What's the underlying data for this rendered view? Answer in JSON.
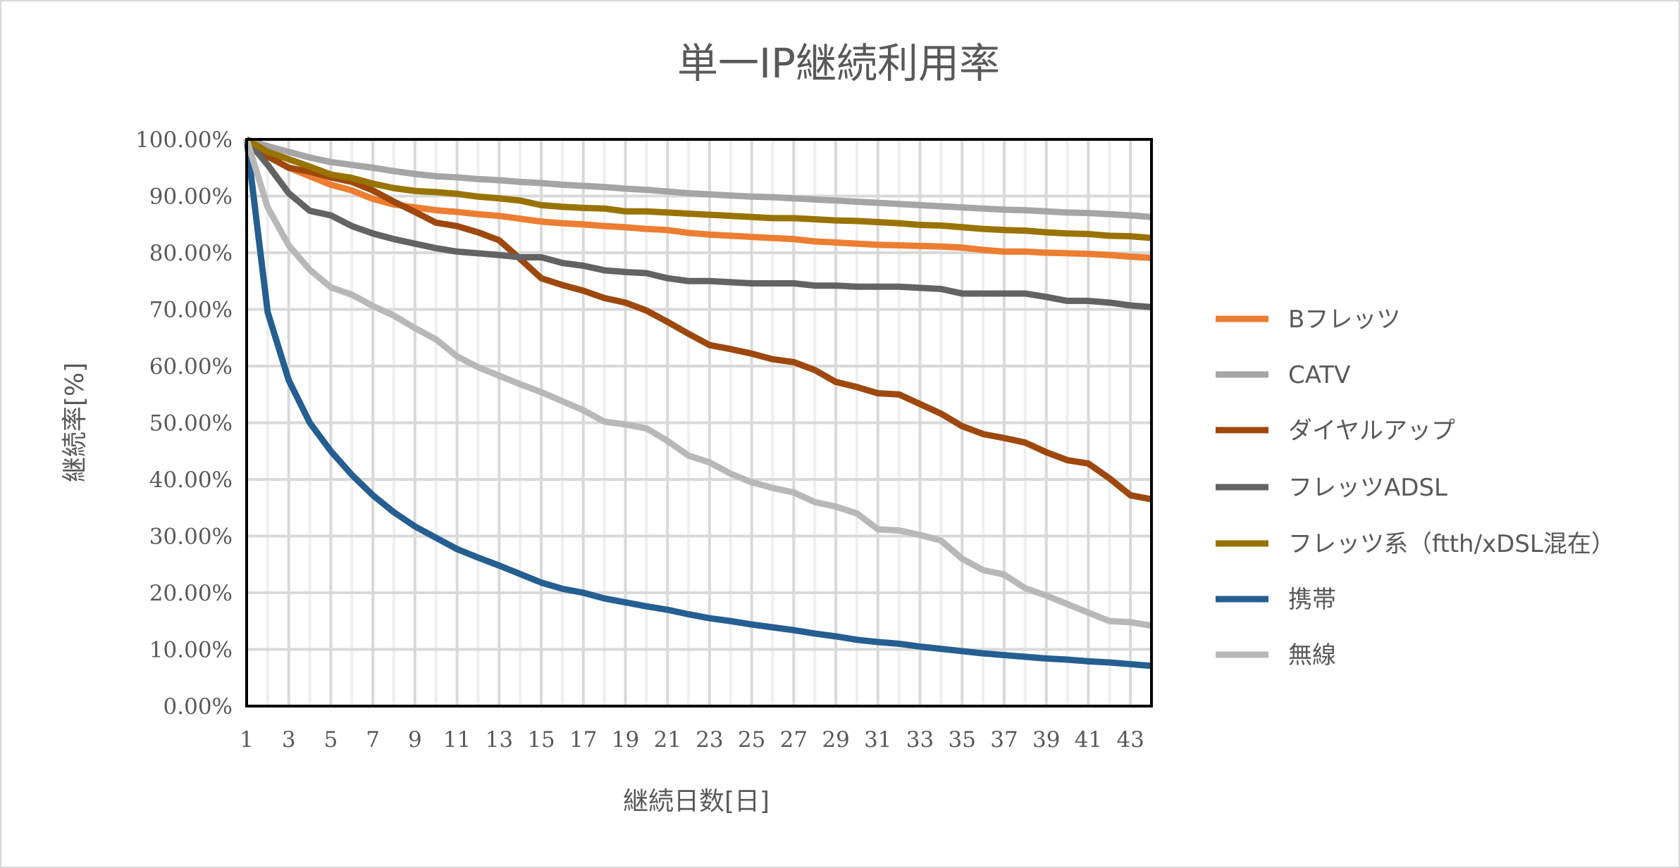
{
  "chart_data": {
    "type": "line",
    "title": "単一IP継続利用率",
    "xlabel": "継続日数[日]",
    "ylabel": "継続率[%]",
    "ylim": [
      0,
      100
    ],
    "xlim": [
      1,
      44
    ],
    "grid": true,
    "legend_position": "right",
    "y_ticks": [
      "0.00%",
      "10.00%",
      "20.00%",
      "30.00%",
      "40.00%",
      "50.00%",
      "60.00%",
      "70.00%",
      "80.00%",
      "90.00%",
      "100.00%"
    ],
    "x_ticks": [
      "1",
      "3",
      "5",
      "7",
      "9",
      "11",
      "13",
      "15",
      "17",
      "19",
      "21",
      "23",
      "25",
      "27",
      "29",
      "31",
      "33",
      "35",
      "37",
      "39",
      "41",
      "43"
    ],
    "x": [
      1,
      2,
      3,
      4,
      5,
      6,
      7,
      8,
      9,
      10,
      11,
      12,
      13,
      14,
      15,
      16,
      17,
      18,
      19,
      20,
      21,
      22,
      23,
      24,
      25,
      26,
      27,
      28,
      29,
      30,
      31,
      32,
      33,
      34,
      35,
      36,
      37,
      38,
      39,
      40,
      41,
      42,
      43,
      44
    ],
    "series": [
      {
        "name": "Bフレッツ",
        "color": "#ED7D31",
        "values": [
          100,
          97,
          95,
          93.5,
          92,
          91,
          89.5,
          88.5,
          88,
          87.5,
          87.2,
          86.8,
          86.5,
          86,
          85.5,
          85.2,
          85,
          84.7,
          84.5,
          84.2,
          84,
          83.5,
          83.2,
          83,
          82.8,
          82.6,
          82.4,
          82,
          81.8,
          81.6,
          81.4,
          81.3,
          81.2,
          81.1,
          80.9,
          80.5,
          80.2,
          80.2,
          80,
          79.9,
          79.8,
          79.6,
          79.3,
          79.1
        ]
      },
      {
        "name": "CATV",
        "color": "#A5A5A5",
        "values": [
          100,
          98.8,
          97.8,
          96.8,
          96,
          95.5,
          95,
          94.4,
          93.9,
          93.5,
          93.3,
          93,
          92.8,
          92.5,
          92.3,
          92,
          91.8,
          91.6,
          91.3,
          91.1,
          90.8,
          90.5,
          90.3,
          90.1,
          89.9,
          89.8,
          89.6,
          89.4,
          89.2,
          89,
          88.8,
          88.6,
          88.4,
          88.2,
          88,
          87.8,
          87.6,
          87.5,
          87.3,
          87.1,
          87,
          86.8,
          86.6,
          86.3
        ]
      },
      {
        "name": "ダイヤルアップ",
        "color": "#9E480E",
        "values": [
          100,
          97,
          95,
          94.3,
          93.3,
          92.5,
          91,
          89,
          87.2,
          85.3,
          84.7,
          83.6,
          82.2,
          78.9,
          75.5,
          74.3,
          73.3,
          72,
          71.2,
          69.8,
          67.8,
          65.7,
          63.7,
          63,
          62.2,
          61.2,
          60.7,
          59.3,
          57.2,
          56.3,
          55.2,
          55,
          53.3,
          51.6,
          49.4,
          48,
          47.3,
          46.5,
          44.8,
          43.4,
          42.8,
          40.2,
          37.2,
          36.5
        ]
      },
      {
        "name": "フレッツADSL",
        "color": "#636363",
        "values": [
          100,
          95.5,
          90.5,
          87.4,
          86.6,
          84.7,
          83.4,
          82.4,
          81.6,
          80.8,
          80.2,
          79.9,
          79.6,
          79.2,
          79.2,
          78.2,
          77.7,
          76.9,
          76.6,
          76.4,
          75.5,
          75,
          75,
          74.8,
          74.6,
          74.6,
          74.6,
          74.2,
          74.2,
          74,
          74,
          74,
          73.8,
          73.6,
          72.8,
          72.8,
          72.8,
          72.8,
          72.2,
          71.5,
          71.5,
          71.2,
          70.7,
          70.4
        ]
      },
      {
        "name": "フレッツ系（ftth/xDSL混在）",
        "color": "#997300",
        "values": [
          100,
          97.8,
          96.5,
          95.2,
          93.8,
          93.2,
          92.2,
          91.4,
          90.9,
          90.7,
          90.4,
          89.9,
          89.6,
          89.2,
          88.4,
          88.1,
          87.9,
          87.8,
          87.3,
          87.3,
          87.1,
          86.9,
          86.7,
          86.5,
          86.3,
          86.1,
          86.1,
          85.9,
          85.7,
          85.6,
          85.4,
          85.2,
          84.9,
          84.8,
          84.5,
          84.2,
          84,
          83.9,
          83.6,
          83.4,
          83.3,
          83,
          82.9,
          82.6
        ]
      },
      {
        "name": "携帯",
        "color": "#255E91",
        "values": [
          100,
          69.5,
          57.5,
          50,
          45,
          40.8,
          37.2,
          34.2,
          31.7,
          29.7,
          27.7,
          26.2,
          24.8,
          23.3,
          21.8,
          20.7,
          20,
          19,
          18.3,
          17.6,
          17,
          16.2,
          15.5,
          15,
          14.4,
          13.9,
          13.4,
          12.8,
          12.3,
          11.7,
          11.3,
          11,
          10.5,
          10.1,
          9.7,
          9.3,
          9,
          8.7,
          8.4,
          8.2,
          7.9,
          7.7,
          7.4,
          7.1
        ]
      },
      {
        "name": "無線",
        "color": "#B8B8B8",
        "values": [
          100,
          88,
          81.3,
          77,
          73.9,
          72.6,
          70.6,
          68.9,
          66.7,
          64.7,
          61.7,
          59.8,
          58.3,
          56.8,
          55.4,
          53.8,
          52.2,
          50.2,
          49.7,
          49,
          46.8,
          44.2,
          43,
          41,
          39.5,
          38.5,
          37.7,
          36,
          35.2,
          34,
          31.2,
          31,
          30.2,
          29.2,
          26,
          24,
          23.2,
          20.8,
          19.5,
          18,
          16.5,
          15,
          14.8,
          14.2
        ]
      }
    ]
  }
}
